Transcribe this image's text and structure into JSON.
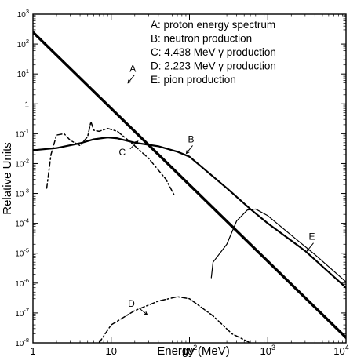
{
  "chart_data": {
    "type": "line",
    "title": "",
    "xlabel": "Energy (MeV)",
    "ylabel": "Relative Units",
    "xscale": "log",
    "yscale": "log",
    "xlim": [
      1,
      10000
    ],
    "ylim": [
      1e-08,
      1000
    ],
    "grid": false,
    "legend_position": "top-right",
    "x_ticks": [
      {
        "value": 1,
        "base": "1",
        "exp": ""
      },
      {
        "value": 10,
        "base": "10",
        "exp": ""
      },
      {
        "value": 100,
        "base": "10",
        "exp": "2"
      },
      {
        "value": 1000,
        "base": "10",
        "exp": "3"
      },
      {
        "value": 10000,
        "base": "10",
        "exp": "4"
      }
    ],
    "y_ticks": [
      {
        "value": 1000,
        "base": "10",
        "exp": "3"
      },
      {
        "value": 100,
        "base": "10",
        "exp": "2"
      },
      {
        "value": 10,
        "base": "10",
        "exp": "1"
      },
      {
        "value": 1,
        "base": "1",
        "exp": ""
      },
      {
        "value": 0.1,
        "base": "10",
        "exp": "-1"
      },
      {
        "value": 0.01,
        "base": "10",
        "exp": "-2"
      },
      {
        "value": 0.001,
        "base": "10",
        "exp": "-3"
      },
      {
        "value": 0.0001,
        "base": "10",
        "exp": "-4"
      },
      {
        "value": 1e-05,
        "base": "10",
        "exp": "-5"
      },
      {
        "value": 1e-06,
        "base": "10",
        "exp": "-6"
      },
      {
        "value": 1e-07,
        "base": "10",
        "exp": "-7"
      },
      {
        "value": 1e-08,
        "base": "10",
        "exp": "-8"
      }
    ],
    "legend": [
      "A: proton energy spectrum",
      "B: neutron production",
      "C: 4.438 MeV γ production",
      "D: 2.223 MeV γ production",
      "E: pion production"
    ],
    "series": [
      {
        "label": "A",
        "style": "thick-solid",
        "points": [
          [
            1,
            250
          ],
          [
            10000,
            1.5e-08
          ]
        ]
      },
      {
        "label": "B",
        "style": "medium-solid",
        "points": [
          [
            1,
            0.028
          ],
          [
            2,
            0.033
          ],
          [
            4,
            0.048
          ],
          [
            6,
            0.065
          ],
          [
            9,
            0.075
          ],
          [
            12,
            0.07
          ],
          [
            20,
            0.05
          ],
          [
            40,
            0.038
          ],
          [
            70,
            0.025
          ],
          [
            100,
            0.017
          ],
          [
            300,
            0.0015
          ],
          [
            600,
            0.0003
          ],
          [
            1000,
            0.0001
          ],
          [
            3000,
            1.2e-05
          ],
          [
            10000,
            7e-07
          ]
        ]
      },
      {
        "label": "C",
        "style": "dash-dot",
        "points": [
          [
            1.5,
            0.0015
          ],
          [
            1.7,
            0.02
          ],
          [
            2,
            0.09
          ],
          [
            2.5,
            0.1
          ],
          [
            3,
            0.06
          ],
          [
            4,
            0.04
          ],
          [
            5,
            0.08
          ],
          [
            5.5,
            0.25
          ],
          [
            6,
            0.13
          ],
          [
            7,
            0.12
          ],
          [
            9,
            0.15
          ],
          [
            12,
            0.12
          ],
          [
            18,
            0.05
          ],
          [
            30,
            0.015
          ],
          [
            50,
            0.003
          ],
          [
            65,
            0.0008
          ]
        ]
      },
      {
        "label": "D",
        "style": "dash-dot",
        "points": [
          [
            7,
            1e-08
          ],
          [
            10,
            4e-08
          ],
          [
            20,
            1.2e-07
          ],
          [
            40,
            2.5e-07
          ],
          [
            70,
            3.5e-07
          ],
          [
            100,
            3e-07
          ],
          [
            200,
            8e-08
          ],
          [
            350,
            2e-08
          ],
          [
            600,
            1e-08
          ]
        ]
      },
      {
        "label": "E",
        "style": "thin-solid",
        "points": [
          [
            190,
            1.5e-06
          ],
          [
            200,
            5e-06
          ],
          [
            300,
            2e-05
          ],
          [
            400,
            0.00012
          ],
          [
            550,
            0.00028
          ],
          [
            700,
            0.0003
          ],
          [
            1000,
            0.00018
          ],
          [
            2000,
            4e-05
          ],
          [
            4000,
            9e-06
          ],
          [
            10000,
            1.1e-06
          ]
        ]
      }
    ],
    "annotations": [
      {
        "text": "A",
        "arrow": "down-left",
        "at": [
          18,
          5
        ]
      },
      {
        "text": "B",
        "arrow": "down-left",
        "at": [
          100,
          0.022
        ]
      },
      {
        "text": "C",
        "arrow": "up-right",
        "at": [
          20,
          0.05
        ]
      },
      {
        "text": "D",
        "arrow": "down-right",
        "at": [
          25,
          1e-07
        ]
      },
      {
        "text": "E",
        "arrow": "down-left",
        "at": [
          3500,
          1.2e-05
        ]
      }
    ],
    "gamma_symbol": "γ"
  }
}
